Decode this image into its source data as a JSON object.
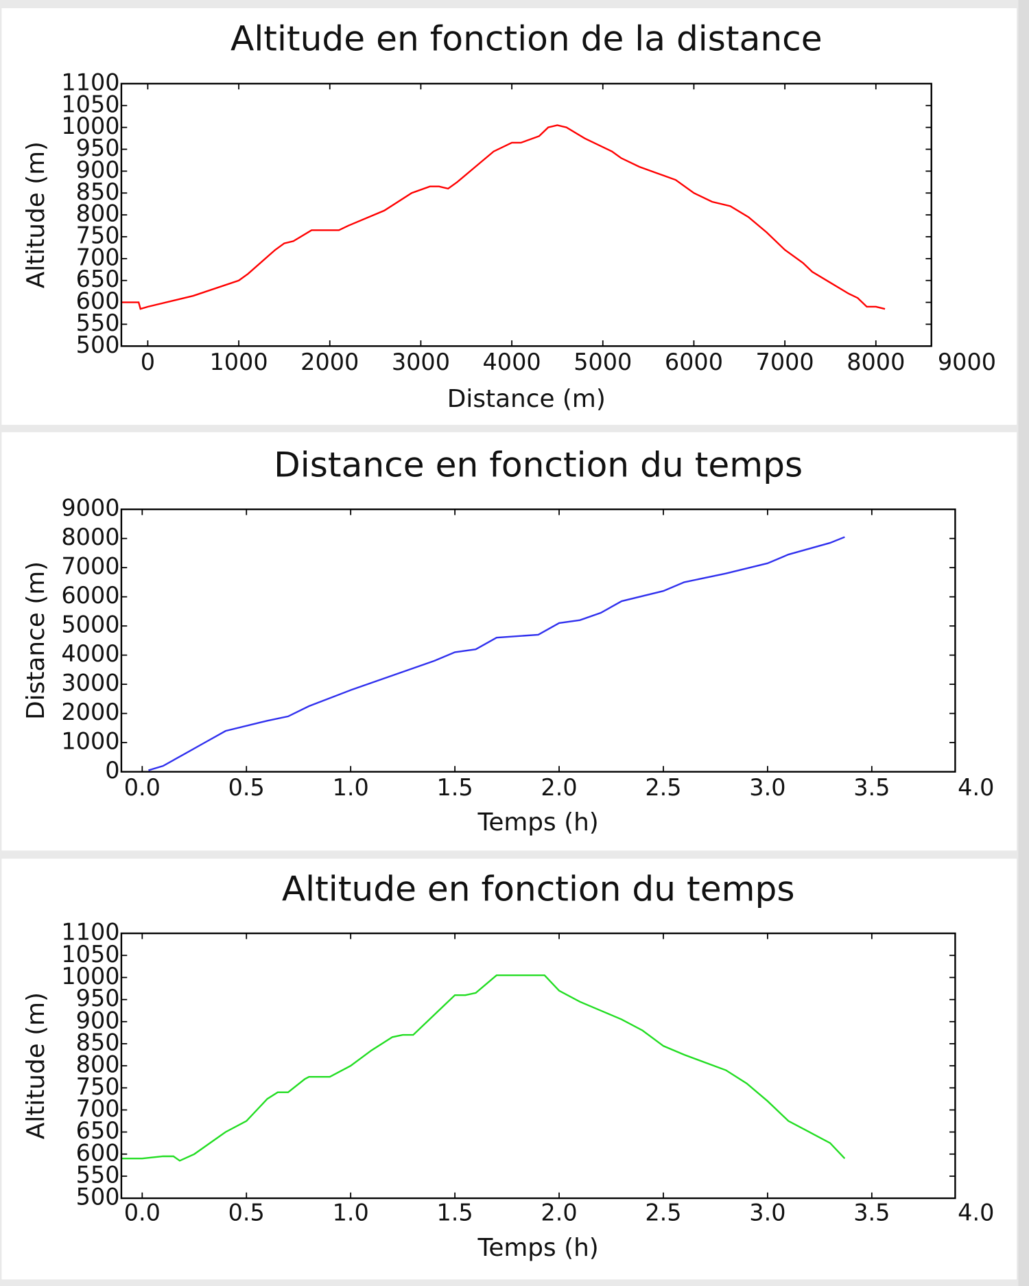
{
  "chart_data": [
    {
      "type": "line",
      "title": "Altitude en fonction de la distance",
      "x_label": "Distance (m)",
      "y_label": "Altitude (m)",
      "color": "#ff0000",
      "xlim": [
        -290,
        8610
      ],
      "ylim": [
        500,
        1100
      ],
      "xticks": [
        0,
        1000,
        2000,
        3000,
        4000,
        5000,
        6000,
        7000,
        8000,
        9000
      ],
      "yticks": [
        500,
        550,
        600,
        650,
        700,
        750,
        800,
        850,
        900,
        950,
        1000,
        1050,
        1100
      ],
      "x": [
        -290,
        -100,
        -80,
        0,
        500,
        1000,
        1100,
        1400,
        1500,
        1600,
        1800,
        2100,
        2200,
        2600,
        2900,
        3100,
        3200,
        3300,
        3400,
        3600,
        3800,
        4000,
        4100,
        4300,
        4400,
        4500,
        4600,
        4800,
        5100,
        5200,
        5400,
        5600,
        5800,
        6000,
        6200,
        6400,
        6600,
        6800,
        7000,
        7200,
        7300,
        7500,
        7700,
        7800,
        7900,
        8000,
        8100
      ],
      "values": [
        600,
        600,
        585,
        590,
        615,
        650,
        665,
        720,
        735,
        740,
        765,
        765,
        775,
        810,
        850,
        865,
        865,
        860,
        875,
        910,
        945,
        965,
        965,
        980,
        1000,
        1005,
        1000,
        975,
        945,
        930,
        910,
        895,
        880,
        850,
        830,
        820,
        795,
        760,
        720,
        690,
        670,
        645,
        620,
        610,
        590,
        590,
        585
      ]
    },
    {
      "type": "line",
      "title": "Distance en fonction du temps",
      "x_label": "Temps (h)",
      "y_label": "Distance (m)",
      "color": "#3030ee",
      "xlim": [
        -0.1,
        3.9
      ],
      "ylim": [
        0,
        9000
      ],
      "xticks": [
        {
          "value": 0,
          "label": "0.0"
        },
        0.5,
        {
          "value": 1,
          "label": "1.0"
        },
        1.5,
        {
          "value": 2,
          "label": "2.0"
        },
        2.5,
        {
          "value": 3,
          "label": "3.0"
        },
        3.5,
        {
          "value": 4,
          "label": "4.0"
        }
      ],
      "yticks": [
        0,
        1000,
        2000,
        3000,
        4000,
        5000,
        6000,
        7000,
        8000,
        9000
      ],
      "x": [
        0.03,
        0.1,
        0.2,
        0.3,
        0.4,
        0.6,
        0.7,
        0.8,
        1.0,
        1.2,
        1.4,
        1.5,
        1.6,
        1.7,
        1.9,
        2.0,
        2.1,
        2.2,
        2.3,
        2.5,
        2.6,
        2.8,
        3.0,
        3.1,
        3.2,
        3.3,
        3.37
      ],
      "values": [
        50,
        200,
        600,
        1000,
        1400,
        1750,
        1900,
        2250,
        2800,
        3300,
        3800,
        4100,
        4200,
        4600,
        4700,
        5100,
        5200,
        5450,
        5850,
        6200,
        6500,
        6800,
        7150,
        7450,
        7650,
        7850,
        8050
      ]
    },
    {
      "type": "line",
      "title": "Altitude en fonction du temps",
      "x_label": "Temps (h)",
      "y_label": "Altitude (m)",
      "color": "#22dd22",
      "xlim": [
        -0.1,
        3.9
      ],
      "ylim": [
        500,
        1100
      ],
      "xticks": [
        {
          "value": 0,
          "label": "0.0"
        },
        0.5,
        {
          "value": 1,
          "label": "1.0"
        },
        1.5,
        {
          "value": 2,
          "label": "2.0"
        },
        2.5,
        {
          "value": 3,
          "label": "3.0"
        },
        3.5,
        {
          "value": 4,
          "label": "4.0"
        }
      ],
      "yticks": [
        500,
        550,
        600,
        650,
        700,
        750,
        800,
        850,
        900,
        950,
        1000,
        1050,
        1100
      ],
      "x": [
        -0.1,
        0.0,
        0.1,
        0.15,
        0.18,
        0.25,
        0.4,
        0.5,
        0.6,
        0.65,
        0.7,
        0.78,
        0.8,
        0.9,
        1.0,
        1.1,
        1.2,
        1.25,
        1.3,
        1.4,
        1.5,
        1.55,
        1.6,
        1.7,
        1.93,
        2.0,
        2.1,
        2.2,
        2.3,
        2.4,
        2.5,
        2.6,
        2.8,
        2.9,
        3.0,
        3.1,
        3.2,
        3.3,
        3.37
      ],
      "values": [
        590,
        590,
        595,
        595,
        585,
        600,
        650,
        675,
        725,
        740,
        740,
        770,
        775,
        775,
        800,
        835,
        865,
        870,
        870,
        915,
        960,
        960,
        965,
        1005,
        1005,
        970,
        945,
        925,
        905,
        880,
        845,
        825,
        790,
        760,
        720,
        675,
        650,
        625,
        590
      ]
    }
  ]
}
